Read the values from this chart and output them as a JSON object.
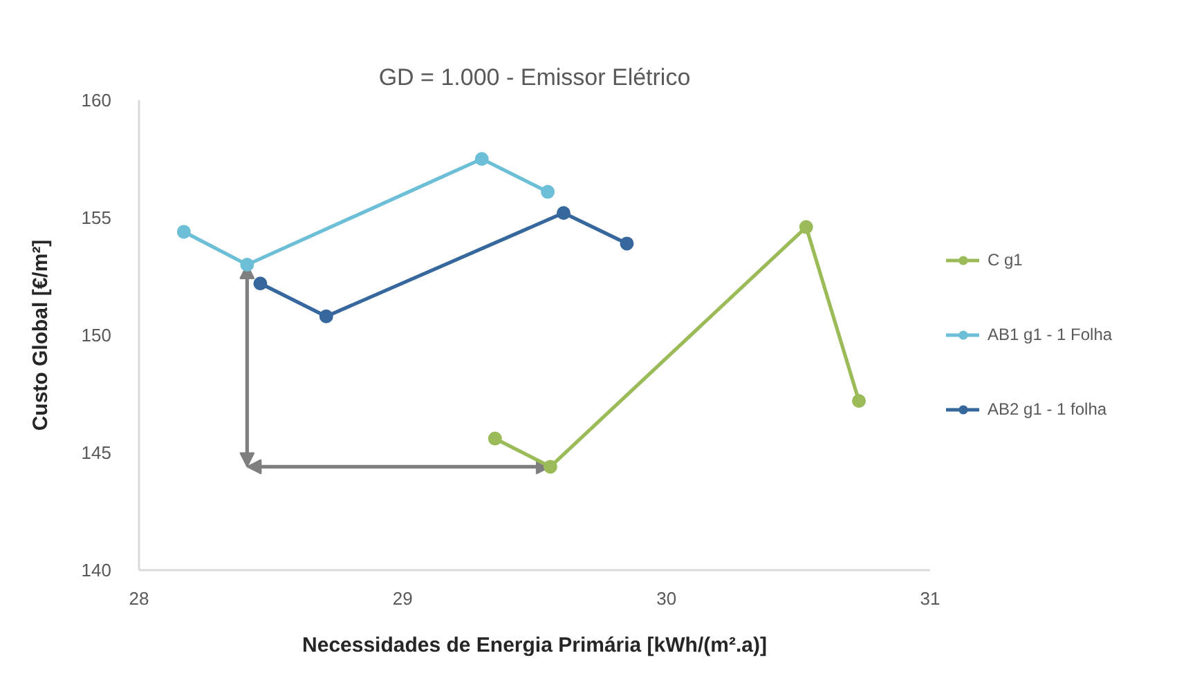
{
  "chart_data": {
    "type": "line",
    "title": "GD = 1.000 - Emissor Elétrico",
    "xlabel": "Necessidades de Energia Primária [kWh/(m².a)]",
    "ylabel": "Custo Global [€/m²]",
    "series": [
      {
        "name": "C g1",
        "color": "#9bbb59",
        "x": [
          29.35,
          29.56,
          30.53,
          30.73
        ],
        "values": [
          145.6,
          144.4,
          154.6,
          147.2
        ]
      },
      {
        "name": "AB1 g1 - 1 Folha",
        "color": "#6cbfd6",
        "x": [
          28.17,
          28.41,
          29.3,
          29.55
        ],
        "values": [
          154.4,
          153.0,
          157.5,
          156.1
        ]
      },
      {
        "name": "AB2 g1 - 1 folha",
        "color": "#36689e",
        "x": [
          28.46,
          28.71,
          29.61,
          29.85
        ],
        "values": [
          152.2,
          150.8,
          155.2,
          153.9
        ]
      }
    ],
    "xlim": [
      28,
      31
    ],
    "ylim": [
      140,
      160
    ],
    "xticks": [
      28,
      29,
      30,
      31
    ],
    "yticks": [
      140,
      145,
      150,
      155,
      160
    ],
    "grid": false,
    "legend": "right",
    "marker": "circle"
  }
}
